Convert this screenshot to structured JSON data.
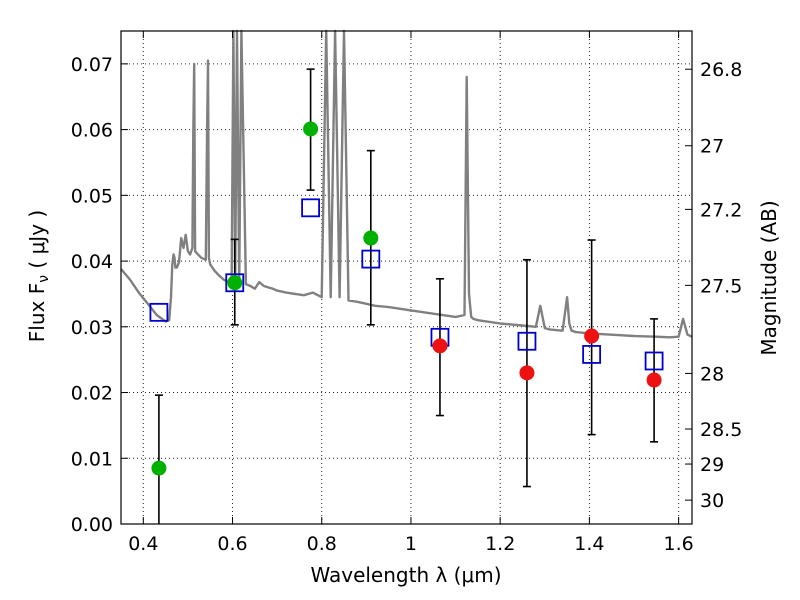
{
  "chart_data": {
    "type": "scatter",
    "xlabel": "Wavelength  λ (μm)",
    "ylabel": "Flux  F",
    "ylabel_sub": "ν",
    "ylabel_unit": "  ( μJy )",
    "y2label": "Magnitude (AB)",
    "xlim": [
      0.35,
      1.63
    ],
    "ylim": [
      0.0,
      0.075
    ],
    "grid": true,
    "x_ticks": [
      {
        "value": 0.4,
        "label": "0.4"
      },
      {
        "value": 0.6,
        "label": "0.6"
      },
      {
        "value": 0.8,
        "label": "0.8"
      },
      {
        "value": 1.0,
        "label": "1"
      },
      {
        "value": 1.2,
        "label": "1.2"
      },
      {
        "value": 1.4,
        "label": "1.4"
      },
      {
        "value": 1.6,
        "label": "1.6"
      }
    ],
    "y_ticks": [
      {
        "value": 0.0,
        "label": "0.00"
      },
      {
        "value": 0.01,
        "label": "0.01"
      },
      {
        "value": 0.02,
        "label": "0.02"
      },
      {
        "value": 0.03,
        "label": "0.03"
      },
      {
        "value": 0.04,
        "label": "0.04"
      },
      {
        "value": 0.05,
        "label": "0.05"
      },
      {
        "value": 0.06,
        "label": "0.06"
      },
      {
        "value": 0.07,
        "label": "0.07"
      }
    ],
    "mag_ticks": [
      {
        "value": 26.8,
        "label": "26.8"
      },
      {
        "value": 27.0,
        "label": "27"
      },
      {
        "value": 27.2,
        "label": "27.2"
      },
      {
        "value": 27.5,
        "label": "27.5"
      },
      {
        "value": 28.0,
        "label": "28"
      },
      {
        "value": 28.5,
        "label": "28.5"
      },
      {
        "value": 29.0,
        "label": "29"
      },
      {
        "value": 30.0,
        "label": "30"
      }
    ],
    "series": [
      {
        "kind": "line",
        "color": "#808080",
        "x": [
          0.35,
          0.37,
          0.39,
          0.41,
          0.43,
          0.45,
          0.458,
          0.462,
          0.465,
          0.468,
          0.47,
          0.472,
          0.475,
          0.48,
          0.485,
          0.49,
          0.495,
          0.5,
          0.505,
          0.51,
          0.512,
          0.514,
          0.516,
          0.52,
          0.53,
          0.54,
          0.543,
          0.545,
          0.547,
          0.55,
          0.56,
          0.57,
          0.58,
          0.59,
          0.598,
          0.602,
          0.606,
          0.61,
          0.615,
          0.62,
          0.63,
          0.64,
          0.65,
          0.66,
          0.67,
          0.68,
          0.69,
          0.7,
          0.72,
          0.74,
          0.76,
          0.78,
          0.8,
          0.81,
          0.82,
          0.83,
          0.84,
          0.85,
          0.86,
          0.88,
          0.9,
          0.92,
          0.95,
          1.0,
          1.05,
          1.1,
          1.12,
          1.125,
          1.13,
          1.135,
          1.14,
          1.15,
          1.2,
          1.25,
          1.28,
          1.29,
          1.3,
          1.31,
          1.34,
          1.35,
          1.355,
          1.36,
          1.37,
          1.4,
          1.45,
          1.5,
          1.55,
          1.58,
          1.6,
          1.61,
          1.62,
          1.63
        ],
        "y": [
          0.0388,
          0.0372,
          0.0352,
          0.0335,
          0.0318,
          0.0308,
          0.031,
          0.0345,
          0.0395,
          0.041,
          0.0405,
          0.039,
          0.039,
          0.0398,
          0.0435,
          0.042,
          0.044,
          0.0415,
          0.041,
          0.042,
          0.0595,
          0.07,
          0.0415,
          0.0412,
          0.0405,
          0.0402,
          0.06,
          0.0705,
          0.0405,
          0.0395,
          0.0385,
          0.0378,
          0.0372,
          0.0368,
          0.0362,
          0.075,
          0.0364,
          0.075,
          0.0364,
          0.075,
          0.0365,
          0.0362,
          0.0358,
          0.0368,
          0.0362,
          0.036,
          0.0358,
          0.0355,
          0.0352,
          0.035,
          0.0348,
          0.0352,
          0.0345,
          0.075,
          0.0345,
          0.075,
          0.0345,
          0.075,
          0.034,
          0.0338,
          0.0335,
          0.0332,
          0.033,
          0.0325,
          0.032,
          0.0315,
          0.0318,
          0.068,
          0.035,
          0.0315,
          0.0312,
          0.031,
          0.0305,
          0.0302,
          0.03,
          0.0332,
          0.0298,
          0.0296,
          0.0294,
          0.0345,
          0.0305,
          0.0294,
          0.0292,
          0.029,
          0.0288,
          0.0286,
          0.0285,
          0.0284,
          0.0285,
          0.0312,
          0.0288,
          0.0285
        ]
      },
      {
        "kind": "errorbar",
        "color": "#000000",
        "bars": [
          {
            "x": 0.435,
            "low": 0.0,
            "high": 0.0196
          },
          {
            "x": 0.605,
            "low": 0.0303,
            "high": 0.0433
          },
          {
            "x": 0.775,
            "low": 0.0508,
            "high": 0.0692
          },
          {
            "x": 0.91,
            "low": 0.0303,
            "high": 0.0568
          },
          {
            "x": 1.065,
            "low": 0.0165,
            "high": 0.0373
          },
          {
            "x": 1.26,
            "low": 0.0057,
            "high": 0.0402
          },
          {
            "x": 1.405,
            "low": 0.0136,
            "high": 0.0432
          },
          {
            "x": 1.545,
            "low": 0.0125,
            "high": 0.0312
          }
        ]
      },
      {
        "kind": "points",
        "marker": "square",
        "color": "#0000cc",
        "x": [
          0.435,
          0.605,
          0.775,
          0.91,
          1.065,
          1.26,
          1.405,
          1.545
        ],
        "y": [
          0.0322,
          0.0367,
          0.0481,
          0.0403,
          0.0284,
          0.0278,
          0.0258,
          0.0248
        ]
      },
      {
        "kind": "points",
        "marker": "circle",
        "color": "#00b000",
        "x": [
          0.435,
          0.605,
          0.775,
          0.91
        ],
        "y": [
          0.0085,
          0.0367,
          0.0601,
          0.0435
        ]
      },
      {
        "kind": "points",
        "marker": "circle",
        "color": "#ee1111",
        "x": [
          1.065,
          1.26,
          1.405,
          1.545
        ],
        "y": [
          0.0271,
          0.023,
          0.0286,
          0.0219
        ]
      }
    ]
  }
}
